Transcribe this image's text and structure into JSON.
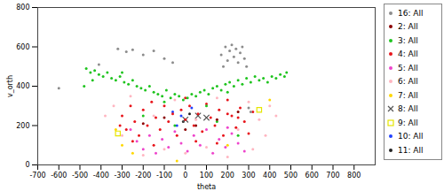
{
  "chart_data": {
    "type": "scatter",
    "x_label": "theta",
    "y_label": "v_orth",
    "xlim": [
      -700,
      900
    ],
    "ylim": [
      0,
      800
    ],
    "xticks": [
      -700,
      -600,
      -500,
      -400,
      -300,
      -200,
      -100,
      0,
      100,
      200,
      300,
      400,
      500,
      600,
      700,
      800
    ],
    "yticks": [
      0,
      200,
      400,
      600,
      800
    ],
    "legend": "right",
    "series": [
      {
        "name": "16: All",
        "color": "#8c8c8c",
        "marker": "circle",
        "x": [
          -320,
          -280,
          -250,
          -200,
          -150,
          -100,
          -60,
          -410,
          -600,
          170,
          190,
          200,
          210,
          220,
          230,
          240,
          250,
          260,
          270,
          280,
          290,
          180,
          300,
          310
        ],
        "values": [
          590,
          575,
          585,
          560,
          580,
          540,
          520,
          510,
          390,
          560,
          600,
          530,
          580,
          610,
          550,
          590,
          520,
          570,
          600,
          540,
          500,
          500,
          290,
          270
        ]
      },
      {
        "name": "2: All",
        "color": "#8b0000",
        "marker": "circle",
        "x": [
          -100,
          50,
          150,
          -200,
          250,
          0
        ],
        "values": [
          240,
          200,
          230,
          210,
          270,
          180
        ]
      },
      {
        "name": "3: All",
        "color": "#1fc41f",
        "marker": "circle",
        "x": [
          -470,
          -450,
          -430,
          -410,
          -390,
          -370,
          -350,
          -330,
          -310,
          -290,
          -270,
          -250,
          -230,
          -210,
          -190,
          -170,
          -150,
          -130,
          -110,
          -90,
          -70,
          -50,
          -30,
          -10,
          10,
          30,
          50,
          70,
          90,
          110,
          130,
          150,
          170,
          190,
          210,
          230,
          250,
          270,
          290,
          310,
          330,
          350,
          370,
          390,
          410,
          430,
          450,
          470,
          -480,
          480,
          -440,
          -300,
          200,
          -100,
          100,
          -200,
          150,
          250,
          -50
        ],
        "values": [
          490,
          470,
          480,
          460,
          450,
          470,
          440,
          430,
          450,
          420,
          410,
          430,
          400,
          390,
          380,
          400,
          370,
          360,
          350,
          380,
          340,
          360,
          350,
          330,
          340,
          360,
          350,
          370,
          380,
          360,
          390,
          400,
          380,
          410,
          420,
          400,
          430,
          410,
          440,
          420,
          450,
          430,
          440,
          420,
          450,
          440,
          460,
          450,
          400,
          470,
          430,
          470,
          370,
          320,
          300,
          250,
          220,
          150,
          200
        ]
      },
      {
        "name": "4: All",
        "color": "#e8141a",
        "marker": "circle",
        "x": [
          -300,
          -280,
          -260,
          -240,
          -220,
          -200,
          -180,
          -160,
          -140,
          -120,
          -100,
          -80,
          -60,
          -40,
          -20,
          0,
          20,
          40,
          60,
          80,
          100,
          120,
          140,
          160,
          180,
          200,
          220,
          240,
          260,
          280,
          300,
          320,
          -250,
          -150,
          50,
          150,
          250,
          -310,
          200,
          0
        ],
        "values": [
          250,
          180,
          300,
          220,
          150,
          280,
          200,
          320,
          240,
          180,
          300,
          220,
          260,
          150,
          280,
          230,
          300,
          200,
          260,
          170,
          310,
          240,
          200,
          280,
          150,
          330,
          250,
          190,
          290,
          220,
          160,
          270,
          120,
          100,
          120,
          110,
          240,
          200,
          260,
          340
        ]
      },
      {
        "name": "5: All",
        "color": "#ee44cc",
        "marker": "circle",
        "x": [
          -230,
          -200,
          -170,
          -140,
          -110,
          -80,
          -50,
          -20,
          10,
          40,
          70,
          100,
          130,
          160,
          190,
          220,
          250,
          280,
          -260,
          200
        ],
        "values": [
          120,
          80,
          150,
          60,
          130,
          90,
          170,
          110,
          70,
          150,
          100,
          180,
          60,
          130,
          90,
          160,
          110,
          70,
          180,
          190
        ]
      },
      {
        "name": "6: All",
        "color": "#ffb6c1",
        "marker": "circle",
        "x": [
          -340,
          -300,
          -260,
          -200,
          -150,
          -100,
          -50,
          0,
          50,
          100,
          150,
          200,
          250,
          300,
          350,
          400,
          430,
          -380,
          380,
          320
        ],
        "values": [
          300,
          150,
          350,
          50,
          250,
          80,
          330,
          60,
          230,
          90,
          340,
          40,
          180,
          320,
          230,
          300,
          250,
          250,
          150,
          80
        ]
      },
      {
        "name": "7: All",
        "color": "#ffd700",
        "marker": "circle",
        "x": [
          -330,
          -300,
          -250,
          200,
          400,
          -40
        ],
        "values": [
          180,
          100,
          60,
          100,
          330,
          20
        ]
      },
      {
        "name": "8: All",
        "color": "#555555",
        "marker": "x",
        "x": [
          0,
          60,
          100
        ],
        "values": [
          230,
          250,
          240
        ]
      },
      {
        "name": "9: All",
        "color": "#e6e600",
        "marker": "square",
        "x": [
          -320,
          350
        ],
        "values": [
          160,
          280
        ]
      },
      {
        "name": "10: All",
        "color": "#2040ff",
        "marker": "circle",
        "x": [
          -20,
          -40,
          30,
          -60
        ],
        "values": [
          250,
          200,
          290,
          270
        ]
      },
      {
        "name": "11: All",
        "color": "#222222",
        "marker": "circle",
        "x": [
          -10,
          20
        ],
        "values": [
          220,
          260
        ]
      }
    ]
  }
}
